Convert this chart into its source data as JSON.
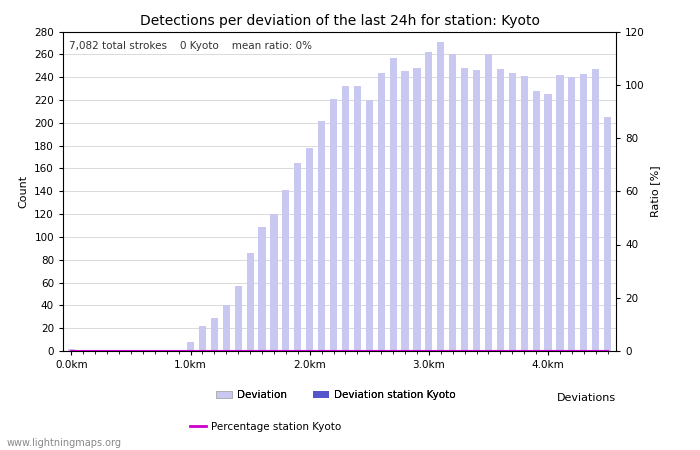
{
  "title": "Detections per deviation of the last 24h for station: Kyoto",
  "subtitle": "7,082 total strokes    0 Kyoto    mean ratio: 0%",
  "xlabel": "Deviations",
  "ylabel_left": "Count",
  "ylabel_right": "Ratio [%]",
  "watermark": "www.lightningmaps.org",
  "ylim_left": [
    0,
    280
  ],
  "ylim_right": [
    0,
    120
  ],
  "yticks_left": [
    0,
    20,
    40,
    60,
    80,
    100,
    120,
    140,
    160,
    180,
    200,
    220,
    240,
    260,
    280
  ],
  "yticks_right": [
    0,
    20,
    40,
    60,
    80,
    100,
    120
  ],
  "deviation_bar_color": "#c8c8f0",
  "station_bar_color": "#5555cc",
  "percentage_line_color": "#cc00cc",
  "xtick_labels": [
    "0.0km",
    "1.0km",
    "2.0km",
    "3.0km",
    "4.0km"
  ],
  "xtick_positions": [
    0,
    10,
    20,
    30,
    40
  ],
  "deviation_values": [
    2,
    1,
    1,
    1,
    1,
    1,
    1,
    1,
    1,
    1,
    8,
    22,
    29,
    40,
    57,
    86,
    109,
    120,
    141,
    165,
    178,
    202,
    221,
    232,
    232,
    220,
    244,
    257,
    245,
    248,
    262,
    271,
    260,
    248,
    246,
    260,
    247,
    244,
    241,
    228,
    225,
    242,
    240,
    243,
    247,
    205
  ],
  "station_values": [
    0,
    0,
    0,
    0,
    0,
    0,
    0,
    0,
    0,
    0,
    0,
    0,
    0,
    0,
    0,
    0,
    0,
    0,
    0,
    0,
    0,
    0,
    0,
    0,
    0,
    0,
    0,
    0,
    0,
    0,
    0,
    0,
    0,
    0,
    0,
    0,
    0,
    0,
    0,
    0,
    0,
    0,
    0,
    0,
    0,
    0
  ],
  "percentage_values": [
    0,
    0,
    0,
    0,
    0,
    0,
    0,
    0,
    0,
    0,
    0,
    0,
    0,
    0,
    0,
    0,
    0,
    0,
    0,
    0,
    0,
    0,
    0,
    0,
    0,
    0,
    0,
    0,
    0,
    0,
    0,
    0,
    0,
    0,
    0,
    0,
    0,
    0,
    0,
    0,
    0,
    0,
    0,
    0,
    0,
    0
  ],
  "bg_color": "#ffffff",
  "grid_color": "#cccccc",
  "title_fontsize": 10,
  "subtitle_fontsize": 7.5,
  "axis_fontsize": 8,
  "tick_fontsize": 7.5
}
